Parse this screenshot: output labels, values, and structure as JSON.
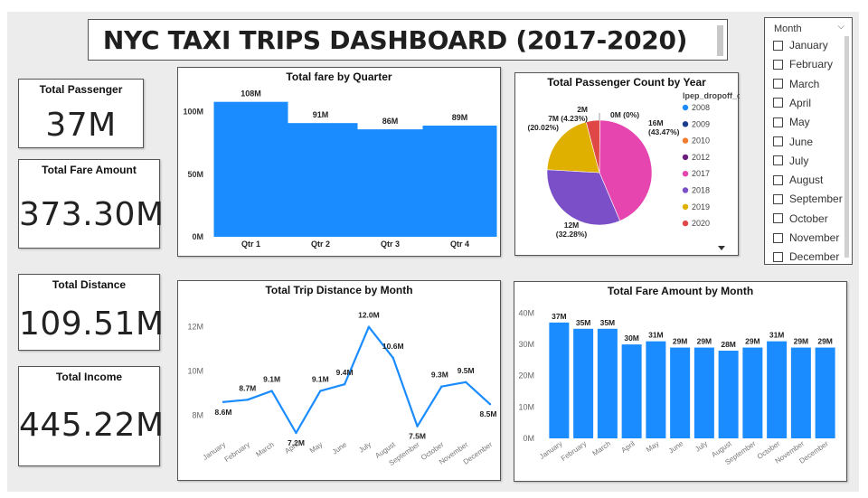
{
  "dashboard": {
    "title": "NYC TAXI TRIPS DASHBOARD (2017-2020)"
  },
  "kpis": {
    "total_passenger": {
      "label": "Total Passenger",
      "value": "37M"
    },
    "total_fare": {
      "label": "Total Fare Amount",
      "value": "373.30M"
    },
    "total_distance": {
      "label": "Total Distance",
      "value": "109.51M"
    },
    "total_income": {
      "label": "Total Income",
      "value": "445.22M"
    }
  },
  "slicer": {
    "header": "Month",
    "items": [
      "January",
      "February",
      "March",
      "April",
      "May",
      "June",
      "July",
      "August",
      "September",
      "October",
      "November",
      "December"
    ]
  },
  "chart_data": [
    {
      "id": "fare_by_quarter",
      "type": "bar",
      "title": "Total fare by Quarter",
      "categories": [
        "Qtr 1",
        "Qtr 2",
        "Qtr 3",
        "Qtr 4"
      ],
      "values": [
        108,
        91,
        86,
        89
      ],
      "data_labels": [
        "108M",
        "91M",
        "86M",
        "89M"
      ],
      "yticks": [
        0,
        50,
        100
      ],
      "ytick_labels": [
        "0M",
        "50M",
        "100M"
      ],
      "ylim": [
        0,
        115
      ],
      "color": "#1a8cff"
    },
    {
      "id": "passenger_by_year",
      "type": "pie",
      "title": "Total Passenger Count by Year",
      "legend_title": "lpep_dropoff_d...",
      "legend_placement": "right",
      "legend": [
        {
          "name": "2008",
          "color": "#1a8cff"
        },
        {
          "name": "2009",
          "color": "#1a3c8c"
        },
        {
          "name": "2010",
          "color": "#f07c30"
        },
        {
          "name": "2012",
          "color": "#6b1f7a"
        },
        {
          "name": "2017",
          "color": "#e645b0"
        },
        {
          "name": "2018",
          "color": "#7a4fc8"
        },
        {
          "name": "2019",
          "color": "#e0b000"
        },
        {
          "name": "2020",
          "color": "#e04848"
        }
      ],
      "slices": [
        {
          "name": "2017",
          "percent": 43.47,
          "color": "#e645b0"
        },
        {
          "name": "2018",
          "percent": 32.28,
          "color": "#7a4fc8"
        },
        {
          "name": "2019",
          "percent": 20.02,
          "color": "#e0b000"
        },
        {
          "name": "2020",
          "percent": 4.23,
          "color": "#e04848"
        },
        {
          "name": "other",
          "percent": 0.0,
          "color": "#1a8cff"
        }
      ],
      "slice_labels": {
        "s2017": "16M\n(43.47%)",
        "s2018": "12M\n(32.28%)",
        "s2019": "7M\n(20.02%)",
        "s2020": "2M\n(4.23%)",
        "szero": "0M (0%)"
      }
    },
    {
      "id": "distance_by_month",
      "type": "line",
      "title": "Total Trip Distance by Month",
      "categories": [
        "January",
        "February",
        "March",
        "April",
        "May",
        "June",
        "July",
        "August",
        "September",
        "October",
        "November",
        "December"
      ],
      "values": [
        8.6,
        8.7,
        9.1,
        7.2,
        9.1,
        9.4,
        12.0,
        10.6,
        7.5,
        9.3,
        9.5,
        8.5
      ],
      "data_labels": [
        "8.6M",
        "8.7M",
        "9.1M",
        "7.2M",
        "9.1M",
        "9.4M",
        "12.0M",
        "10.6M",
        "7.5M",
        "9.3M",
        "9.5M",
        "8.5M"
      ],
      "yticks": [
        8,
        10,
        12
      ],
      "ytick_labels": [
        "8M",
        "10M",
        "12M"
      ],
      "ylim": [
        7.2,
        12.6
      ],
      "color": "#1a8cff"
    },
    {
      "id": "fare_by_month",
      "type": "bar",
      "title": "Total Fare Amount by Month",
      "categories": [
        "January",
        "February",
        "March",
        "April",
        "May",
        "June",
        "July",
        "August",
        "September",
        "October",
        "November",
        "December"
      ],
      "values": [
        37,
        35,
        35,
        30,
        31,
        29,
        29,
        28,
        29,
        31,
        29,
        29
      ],
      "data_labels": [
        "37M",
        "35M",
        "35M",
        "30M",
        "31M",
        "29M",
        "29M",
        "28M",
        "29M",
        "31M",
        "29M",
        "29M"
      ],
      "yticks": [
        0,
        10,
        20,
        30,
        40
      ],
      "ytick_labels": [
        "0M",
        "10M",
        "20M",
        "30M",
        "40M"
      ],
      "ylim": [
        0,
        41
      ],
      "color": "#1a8cff"
    }
  ]
}
